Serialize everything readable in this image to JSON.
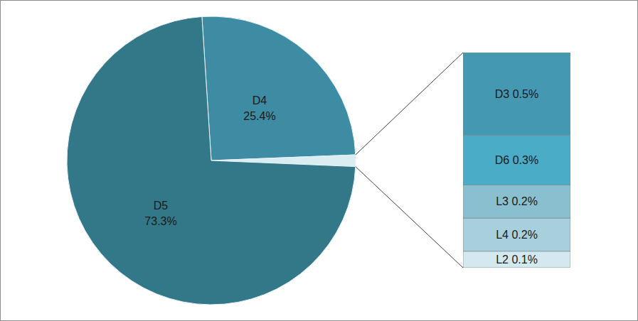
{
  "chart_data": [
    {
      "type": "pie",
      "categories": [
        "D4",
        "D5"
      ],
      "values": [
        25.4,
        73.3
      ],
      "value_labels": [
        "25.4%",
        "73.3%"
      ],
      "colors": [
        "#3d8ca3",
        "#337888"
      ],
      "data_labels": true
    },
    {
      "type": "bar",
      "stacked": true,
      "categories": [
        null
      ],
      "series": [
        {
          "name": "D3",
          "color": "#4498b2",
          "values": [
            0.5
          ],
          "value_labels": [
            "0.5%"
          ]
        },
        {
          "name": "D6",
          "color": "#4aacc6",
          "values": [
            0.3
          ],
          "value_labels": [
            "0.3%"
          ]
        },
        {
          "name": "L3",
          "color": "#89bfcf",
          "values": [
            0.2
          ],
          "value_labels": [
            "0.2%"
          ]
        },
        {
          "name": "L4",
          "color": "#a8d0dc",
          "values": [
            0.2
          ],
          "value_labels": [
            "0.2%"
          ]
        },
        {
          "name": "L2",
          "color": "#d3e8ef",
          "values": [
            0.1
          ],
          "value_labels": [
            "0.1%"
          ]
        }
      ],
      "data_labels": true
    }
  ]
}
